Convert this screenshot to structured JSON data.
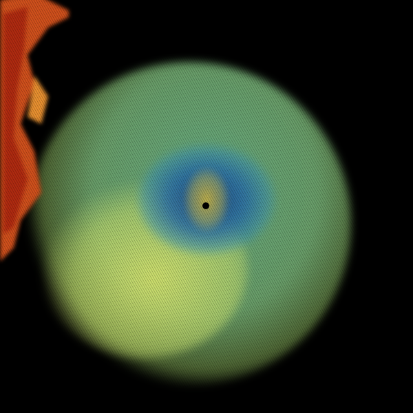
{
  "image": {
    "kind": "weather-radar-reflectivity",
    "colors": {
      "background": "#000000",
      "low": "#1e4682",
      "mid_low": "#3c96b4",
      "mid": "#8cd28c",
      "mid_high": "#e1eb6e",
      "high": "#e07020",
      "highest": "#b02010"
    }
  }
}
